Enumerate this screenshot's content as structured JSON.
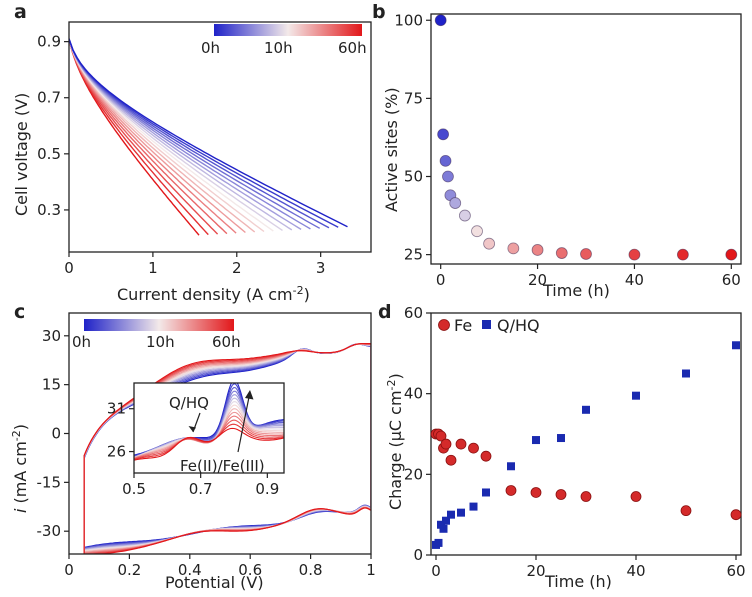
{
  "figure": {
    "panel_labels": [
      "a",
      "b",
      "c",
      "d"
    ]
  },
  "colors": {
    "blue": "#1f22c8",
    "mid": "#f3e9e9",
    "red": "#e2171a",
    "fe": "#d42a2a",
    "qhq": "#1a2ab0"
  },
  "chart_data": [
    {
      "panel": "a",
      "type": "line",
      "xlabel": "Current density (A cm",
      "xlabel_sup": "-2",
      "xlabel_end": ")",
      "ylabel": "Cell voltage (V)",
      "xlim": [
        0,
        3.6
      ],
      "ylim": [
        0.15,
        0.97
      ],
      "xticks": [
        "0",
        "1",
        "2",
        "3"
      ],
      "xtick_values": [
        0,
        1,
        2,
        3
      ],
      "yticks": [
        "0.9",
        "0.7",
        "0.5",
        "0.3"
      ],
      "ytick_values": [
        0.9,
        0.7,
        0.5,
        0.3
      ],
      "colorbar": {
        "labels": [
          "0h",
          "10h",
          "60h"
        ],
        "stops": [
          0,
          10,
          60
        ]
      },
      "curve_count": 17,
      "open_circuit_voltage": 0.91,
      "end_points": {
        "first": {
          "x": 3.32,
          "y": 0.24
        },
        "last": {
          "x": 1.55,
          "y": 0.21
        }
      }
    },
    {
      "panel": "b",
      "type": "scatter",
      "xlabel": "Time (h)",
      "ylabel": "Active sites (%)",
      "xlim": [
        -2,
        62
      ],
      "ylim": [
        22,
        102
      ],
      "xticks": [
        "0",
        "20",
        "40",
        "60"
      ],
      "xtick_values": [
        0,
        20,
        40,
        60
      ],
      "yticks": [
        "100",
        "75",
        "50",
        "25"
      ],
      "ytick_values": [
        100,
        75,
        50,
        25
      ],
      "x": [
        0,
        0.5,
        1,
        1.5,
        2,
        3,
        5,
        7.5,
        10,
        15,
        20,
        25,
        30,
        40,
        50,
        60
      ],
      "y": [
        100,
        63.5,
        55,
        50,
        44,
        41.5,
        37.5,
        32.5,
        28.5,
        27,
        26.5,
        25.5,
        25.2,
        25,
        25,
        25
      ]
    },
    {
      "panel": "c",
      "type": "line",
      "xlabel": "Potential (V)",
      "ylabel_main": "i",
      "ylabel": " (mA cm",
      "ylabel_sup": "-2",
      "ylabel_end": ")",
      "xlim": [
        0,
        1
      ],
      "ylim": [
        -37,
        37
      ],
      "xticks": [
        "0",
        "0.2",
        "0.4",
        "0.6",
        "0.8",
        "1"
      ],
      "xtick_values": [
        0,
        0.2,
        0.4,
        0.6,
        0.8,
        1
      ],
      "yticks": [
        "30",
        "15",
        "0",
        "-15",
        "-30"
      ],
      "ytick_values": [
        30,
        15,
        0,
        -15,
        -30
      ],
      "colorbar": {
        "labels": [
          "0h",
          "10h",
          "60h"
        ],
        "stops": [
          0,
          10,
          60
        ]
      },
      "inset": {
        "xlim": [
          0.5,
          0.95
        ],
        "ylim": [
          23.5,
          34
        ],
        "xticks": [
          "0.5",
          "0.7",
          "0.9"
        ],
        "xtick_values": [
          0.5,
          0.7,
          0.9
        ],
        "yticks": [
          "31",
          "26"
        ],
        "ytick_values": [
          31,
          26
        ],
        "annotations": [
          "Q/HQ",
          "Fe(II)/Fe(III)"
        ]
      }
    },
    {
      "panel": "d",
      "type": "scatter",
      "xlabel": "Time (h)",
      "ylabel": "Charge (μC cm",
      "ylabel_sup": "-2",
      "ylabel_end": ")",
      "xlim": [
        -1,
        61
      ],
      "ylim": [
        0,
        60
      ],
      "xticks": [
        "0",
        "20",
        "40",
        "60"
      ],
      "xtick_values": [
        0,
        20,
        40,
        60
      ],
      "yticks": [
        "0",
        "20",
        "40",
        "60"
      ],
      "ytick_values": [
        0,
        20,
        40,
        60
      ],
      "legend_position": "top-left",
      "series": [
        {
          "name": "Fe",
          "marker": "circle",
          "x": [
            0,
            0.5,
            1,
            1.5,
            2,
            3,
            5,
            7.5,
            10,
            15,
            20,
            25,
            30,
            40,
            50,
            60
          ],
          "y": [
            30,
            30,
            29.5,
            26.5,
            27.5,
            23.5,
            27.5,
            26.5,
            24.5,
            16,
            15.5,
            15,
            14.5,
            14.5,
            11,
            10
          ]
        },
        {
          "name": "Q/HQ",
          "marker": "square",
          "x": [
            0,
            0.5,
            1,
            1.5,
            2,
            3,
            5,
            7.5,
            10,
            15,
            20,
            25,
            30,
            40,
            50,
            60
          ],
          "y": [
            2.5,
            3,
            7.5,
            6.5,
            8.5,
            10,
            10.5,
            12,
            15.5,
            22,
            28.5,
            29,
            36,
            39.5,
            45,
            52
          ]
        }
      ]
    }
  ]
}
